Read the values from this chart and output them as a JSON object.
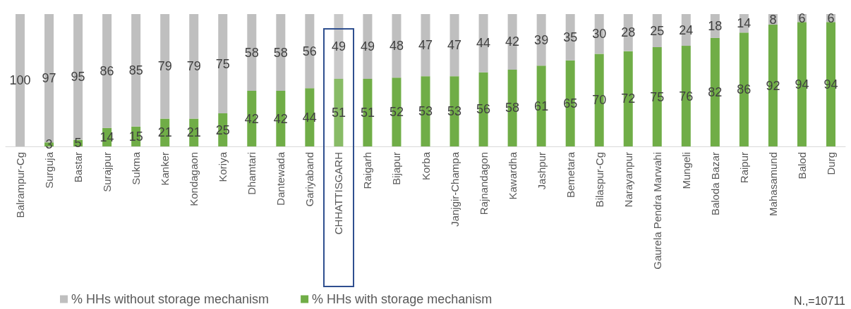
{
  "chart_data": {
    "type": "bar",
    "stacked": true,
    "categories": [
      "Balrampur-Cg",
      "Surguja",
      "Bastar",
      "Surajpur",
      "Sukma",
      "Kanker",
      "Kondagaon",
      "Koriya",
      "Dhamtari",
      "Dantewada",
      "Gariyaband",
      "CHHATTISGARH",
      "Raigarh",
      "Bijapur",
      "Korba",
      "Janjgir-Champa",
      "Rajnandagon",
      "Kawardha",
      "Jashpur",
      "Bemetara",
      "Bilaspur-Cg",
      "Narayanpur",
      "Gaurela Pendra Marwahi",
      "Mungeli",
      "Baloda Bazar",
      "Raipur",
      "Mahasamund",
      "Balod",
      "Durg"
    ],
    "series": [
      {
        "name": "% HHs with storage mechanism",
        "color": "#70ad47",
        "colors": [
          "#70ad47",
          "#70ad47",
          "#70ad47",
          "#70ad47",
          "#70ad47",
          "#70ad47",
          "#70ad47",
          "#70ad47",
          "#70ad47",
          "#70ad47",
          "#70ad47",
          "#88bb66",
          "#70ad47",
          "#70ad47",
          "#70ad47",
          "#70ad47",
          "#70ad47",
          "#70ad47",
          "#70ad47",
          "#70ad47",
          "#70ad47",
          "#70ad47",
          "#70ad47",
          "#70ad47",
          "#70ad47",
          "#70ad47",
          "#70ad47",
          "#70ad47",
          "#70ad47"
        ],
        "values": [
          0,
          3,
          5,
          14,
          15,
          21,
          21,
          25,
          42,
          42,
          44,
          51,
          51,
          52,
          53,
          53,
          56,
          58,
          61,
          65,
          70,
          72,
          75,
          76,
          82,
          86,
          92,
          94,
          94
        ],
        "value_labels": [
          null,
          "3",
          "5",
          "14",
          "15",
          "21",
          "21",
          "25",
          "42",
          "42",
          "44",
          "51",
          "51",
          "52",
          "53",
          "53",
          "56",
          "58",
          "61",
          "65",
          "70",
          "72",
          "75",
          "76",
          "82",
          "86",
          "92",
          "94",
          "94"
        ]
      },
      {
        "name": "% HHs without storage mechanism",
        "color": "#bfbfbf",
        "colors": [
          "#bfbfbf",
          "#bfbfbf",
          "#bfbfbf",
          "#bfbfbf",
          "#bfbfbf",
          "#bfbfbf",
          "#bfbfbf",
          "#bfbfbf",
          "#bfbfbf",
          "#bfbfbf",
          "#bfbfbf",
          "#c9c9c9",
          "#bfbfbf",
          "#bfbfbf",
          "#bfbfbf",
          "#bfbfbf",
          "#bfbfbf",
          "#bfbfbf",
          "#bfbfbf",
          "#bfbfbf",
          "#bfbfbf",
          "#bfbfbf",
          "#bfbfbf",
          "#bfbfbf",
          "#bfbfbf",
          "#bfbfbf",
          "#bfbfbf",
          "#bfbfbf",
          "#bfbfbf"
        ],
        "values": [
          100,
          97,
          95,
          86,
          85,
          79,
          79,
          75,
          58,
          58,
          56,
          49,
          49,
          48,
          47,
          47,
          44,
          42,
          39,
          35,
          30,
          28,
          25,
          24,
          18,
          14,
          8,
          6,
          6
        ],
        "value_labels": [
          "100",
          "97",
          "95",
          "86",
          "85",
          "79",
          "79",
          "75",
          "58",
          "58",
          "56",
          "49",
          "49",
          "48",
          "47",
          "47",
          "44",
          "42",
          "39",
          "35",
          "30",
          "28",
          "25",
          "24",
          "18",
          "14",
          "8",
          "6",
          "6"
        ]
      }
    ],
    "legend": "bottom",
    "annotations": [
      "N.,=10711"
    ]
  }
}
